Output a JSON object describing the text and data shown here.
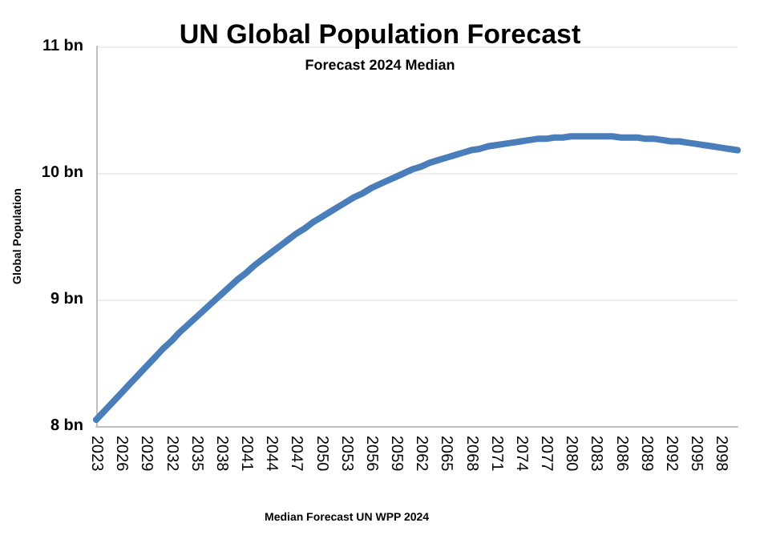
{
  "chart_data": {
    "type": "line",
    "title": "UN Global Population Forecast",
    "subtitle": "Forecast 2024 Median",
    "ylabel": "Global Population",
    "annotations": [
      "Median Forecast UN WPP 2024"
    ],
    "categories": [
      "2023",
      null,
      null,
      "2026",
      null,
      null,
      "2029",
      null,
      null,
      "2032",
      null,
      null,
      "2035",
      null,
      null,
      "2038",
      null,
      null,
      "2041",
      null,
      null,
      "2044",
      null,
      null,
      "2047",
      null,
      null,
      "2050",
      null,
      null,
      "2053",
      null,
      null,
      "2056",
      null,
      null,
      "2059",
      null,
      null,
      "2062",
      null,
      null,
      "2065",
      null,
      null,
      "2068",
      null,
      null,
      "2071",
      null,
      null,
      "2074",
      null,
      null,
      "2077",
      null,
      null,
      "2080",
      null,
      null,
      "2083",
      null,
      null,
      "2086",
      null,
      null,
      "2089",
      null,
      null,
      "2092",
      null,
      null,
      "2095",
      null,
      null,
      "2098",
      null,
      null
    ],
    "series": [
      {
        "color": "#4a7ebb",
        "values": [
          8.05,
          8.12,
          8.19,
          8.26,
          8.33,
          8.4,
          8.47,
          8.54,
          8.61,
          8.67,
          8.74,
          8.8,
          8.86,
          8.92,
          8.98,
          9.04,
          9.1,
          9.16,
          9.21,
          9.27,
          9.32,
          9.37,
          9.42,
          9.47,
          9.52,
          9.56,
          9.61,
          9.65,
          9.69,
          9.73,
          9.77,
          9.81,
          9.84,
          9.88,
          9.91,
          9.94,
          9.97,
          10.0,
          10.03,
          10.05,
          10.08,
          10.1,
          10.12,
          10.14,
          10.16,
          10.18,
          10.19,
          10.21,
          10.22,
          10.23,
          10.24,
          10.25,
          10.26,
          10.27,
          10.27,
          10.28,
          10.28,
          10.29,
          10.29,
          10.29,
          10.29,
          10.29,
          10.29,
          10.28,
          10.28,
          10.28,
          10.27,
          10.27,
          10.26,
          10.25,
          10.25,
          10.24,
          10.23,
          10.22,
          10.21,
          10.2,
          10.19,
          10.18
        ]
      }
    ],
    "ylim": [
      8,
      11
    ],
    "yticks": [
      {
        "value": 8,
        "label": "8 bn"
      },
      {
        "value": 9,
        "label": "9 bn"
      },
      {
        "value": 10,
        "label": "10 bn"
      },
      {
        "value": 11,
        "label": "11 bn"
      }
    ],
    "grid": "y",
    "marker": "none",
    "line_style": "solid"
  }
}
